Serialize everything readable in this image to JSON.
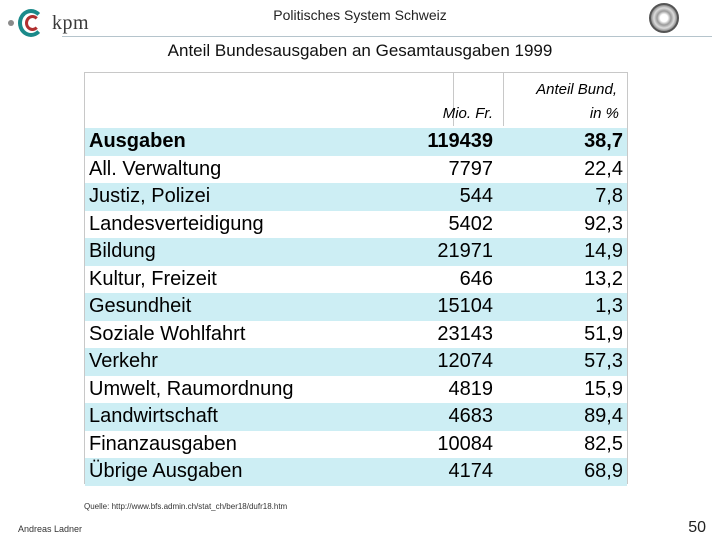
{
  "header": {
    "logo_text": "kpm",
    "title": "Politisches System Schweiz"
  },
  "slide": {
    "title": "Anteil Bundesausgaben an Gesamtausgaben 1999"
  },
  "table": {
    "col_header_anteil": "Anteil Bund,",
    "col_header_mio": "Mio. Fr.",
    "col_header_pct": "in %",
    "rows": [
      {
        "name": "Ausgaben",
        "mio": "119439",
        "pct": "38,7",
        "bold": true,
        "highlight": true
      },
      {
        "name": "All. Verwaltung",
        "mio": "7797",
        "pct": "22,4",
        "bold": false,
        "highlight": false
      },
      {
        "name": "Justiz, Polizei",
        "mio": "544",
        "pct": "7,8",
        "bold": false,
        "highlight": true
      },
      {
        "name": "Landesverteidigung",
        "mio": "5402",
        "pct": "92,3",
        "bold": false,
        "highlight": false
      },
      {
        "name": "Bildung",
        "mio": "21971",
        "pct": "14,9",
        "bold": false,
        "highlight": true
      },
      {
        "name": "Kultur, Freizeit",
        "mio": "646",
        "pct": "13,2",
        "bold": false,
        "highlight": false
      },
      {
        "name": "Gesundheit",
        "mio": "15104",
        "pct": "1,3",
        "bold": false,
        "highlight": true
      },
      {
        "name": "Soziale Wohlfahrt",
        "mio": "23143",
        "pct": "51,9",
        "bold": false,
        "highlight": false
      },
      {
        "name": "Verkehr",
        "mio": "12074",
        "pct": "57,3",
        "bold": false,
        "highlight": true
      },
      {
        "name": "Umwelt, Raumordnung",
        "mio": "4819",
        "pct": "15,9",
        "bold": false,
        "highlight": false
      },
      {
        "name": "Landwirtschaft",
        "mio": "4683",
        "pct": "89,4",
        "bold": false,
        "highlight": true
      },
      {
        "name": "Finanzausgaben",
        "mio": "10084",
        "pct": "82,5",
        "bold": false,
        "highlight": false
      },
      {
        "name": "Übrige Ausgaben",
        "mio": "4174",
        "pct": "68,9",
        "bold": false,
        "highlight": true
      }
    ]
  },
  "footer": {
    "source": "Quelle: http://www.bfs.admin.ch/stat_ch/ber18/dufr18.htm",
    "author": "Andreas Ladner",
    "page_number": "50"
  }
}
